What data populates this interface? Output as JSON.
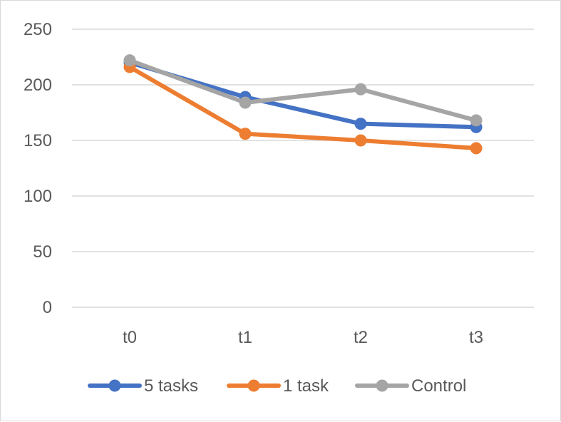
{
  "chart_data": {
    "type": "line",
    "title": "",
    "xlabel": "",
    "ylabel": "",
    "categories": [
      "t0",
      "t1",
      "t2",
      "t3"
    ],
    "ylim": [
      0,
      250
    ],
    "yticks": [
      0,
      50,
      100,
      150,
      200,
      250
    ],
    "grid": true,
    "legend_position": "bottom",
    "series": [
      {
        "name": "5 tasks",
        "color": "#4472C4",
        "values": [
          220,
          189,
          165,
          162
        ]
      },
      {
        "name": "1 task",
        "color": "#ED7D31",
        "values": [
          216,
          156,
          150,
          143
        ]
      },
      {
        "name": "Control",
        "color": "#A5A5A5",
        "values": [
          222,
          184,
          196,
          168
        ]
      }
    ]
  }
}
